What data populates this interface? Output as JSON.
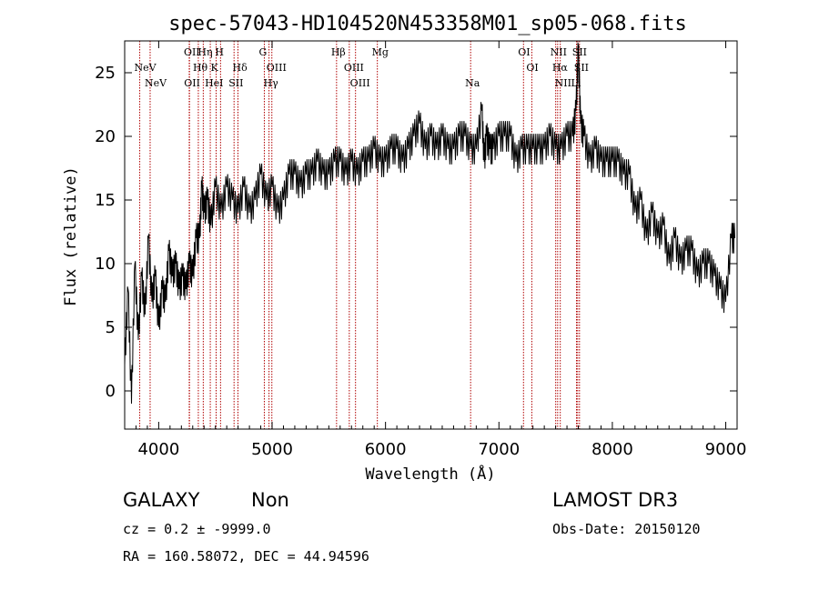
{
  "chart_data": {
    "type": "line",
    "title": "spec-57043-HD104520N453358M01_sp05-068.fits",
    "xlabel": "Wavelength (Å)",
    "ylabel": "Flux (relative)",
    "xlim": [
      3700,
      9100
    ],
    "ylim": [
      -3,
      27.5
    ],
    "x_ticks": [
      4000,
      5000,
      6000,
      7000,
      8000,
      9000
    ],
    "y_ticks": [
      0,
      5,
      10,
      15,
      20,
      25
    ],
    "line_color": "#000000",
    "marker_color": "#b00000",
    "series": [
      {
        "name": "spectrum",
        "x": [
          3700,
          3730,
          3760,
          3790,
          3820,
          3850,
          3880,
          3910,
          3940,
          3970,
          4000,
          4030,
          4060,
          4090,
          4120,
          4150,
          4180,
          4210,
          4240,
          4270,
          4300,
          4330,
          4360,
          4380,
          4400,
          4430,
          4460,
          4500,
          4550,
          4600,
          4650,
          4700,
          4750,
          4800,
          4850,
          4900,
          4950,
          5000,
          5050,
          5100,
          5150,
          5200,
          5250,
          5300,
          5350,
          5400,
          5450,
          5500,
          5550,
          5600,
          5650,
          5700,
          5750,
          5800,
          5850,
          5900,
          5950,
          6000,
          6050,
          6100,
          6150,
          6200,
          6250,
          6300,
          6350,
          6400,
          6450,
          6500,
          6550,
          6600,
          6650,
          6700,
          6750,
          6800,
          6850,
          6870,
          6890,
          6920,
          6950,
          7000,
          7050,
          7100,
          7150,
          7200,
          7250,
          7300,
          7350,
          7400,
          7450,
          7500,
          7550,
          7600,
          7650,
          7680,
          7700,
          7720,
          7750,
          7800,
          7850,
          7900,
          7950,
          8000,
          8050,
          8100,
          8150,
          8200,
          8250,
          8300,
          8350,
          8400,
          8450,
          8500,
          8550,
          8600,
          8650,
          8700,
          8750,
          8800,
          8850,
          8900,
          8950,
          9000,
          9050,
          9080
        ],
        "y": [
          2,
          8,
          -1,
          10,
          4,
          9,
          6,
          12,
          7,
          9,
          5,
          8,
          7,
          11,
          9,
          10,
          8,
          9,
          8,
          10,
          9,
          12,
          12,
          16,
          14,
          15,
          13,
          16,
          14,
          16,
          15,
          14,
          16,
          14,
          15,
          17,
          15,
          16,
          14,
          15,
          17,
          17,
          16,
          17,
          17,
          18,
          17,
          17,
          18,
          18,
          17,
          18,
          17,
          18,
          18,
          19,
          18,
          18,
          19,
          19,
          18,
          19,
          20,
          21,
          19,
          20,
          19,
          20,
          19,
          19,
          20,
          20,
          19,
          19,
          22,
          18,
          20,
          19,
          19,
          20,
          20,
          20,
          18,
          19,
          19,
          19,
          19,
          19,
          20,
          19,
          19,
          20,
          20,
          22,
          27,
          21,
          20,
          18,
          19,
          18,
          18,
          18,
          18,
          17,
          17,
          14,
          15,
          12,
          14,
          12,
          13,
          10,
          12,
          10,
          11,
          11,
          9,
          10,
          10,
          9,
          8,
          7,
          12,
          12
        ]
      }
    ],
    "line_markers": [
      {
        "label": "NeV",
        "wavelength": 3426,
        "row": 2
      },
      {
        "label": "NeV",
        "wavelength": 3346,
        "row": 1
      },
      {
        "label": "OII",
        "wavelength": 3727,
        "row": 0
      },
      {
        "label": "OII",
        "wavelength": 3729,
        "row": 2
      },
      {
        "label": "Hη",
        "wavelength": 3835,
        "row": 0
      },
      {
        "label": "Hθ",
        "wavelength": 3797,
        "row": 1
      },
      {
        "label": "H",
        "wavelength": 3968,
        "row": 0
      },
      {
        "label": "HeI",
        "wavelength": 3889,
        "row": 2
      },
      {
        "label": "K",
        "wavelength": 3934,
        "row": 1
      },
      {
        "label": "Hδ",
        "wavelength": 4102,
        "row": 1
      },
      {
        "label": "SII",
        "wavelength": 4072,
        "row": 2
      },
      {
        "label": "G",
        "wavelength": 4305,
        "row": 0
      },
      {
        "label": "OIII",
        "wavelength": 4363,
        "row": 1
      },
      {
        "label": "Hγ",
        "wavelength": 4341,
        "row": 2
      },
      {
        "label": "Hβ",
        "wavelength": 4861,
        "row": 0
      },
      {
        "label": "OIII",
        "wavelength": 4959,
        "row": 1
      },
      {
        "label": "OIII",
        "wavelength": 5007,
        "row": 2
      },
      {
        "label": "Mg",
        "wavelength": 5175,
        "row": 0
      },
      {
        "label": "Na",
        "wavelength": 5893,
        "row": 2
      },
      {
        "label": "OI",
        "wavelength": 6300,
        "row": 0
      },
      {
        "label": "OI",
        "wavelength": 6364,
        "row": 1
      },
      {
        "label": "NII",
        "wavelength": 6548,
        "row": 0
      },
      {
        "label": "Hα",
        "wavelength": 6563,
        "row": 1
      },
      {
        "label": "NII",
        "wavelength": 6583,
        "row": 2
      },
      {
        "label": "SII",
        "wavelength": 6717,
        "row": 0
      },
      {
        "label": "SII",
        "wavelength": 6731,
        "row": 1
      },
      {
        "label": "Li",
        "wavelength": 6708,
        "row": 2
      }
    ],
    "redshift_factor": 1.1455
  },
  "info": {
    "class": "GALAXY",
    "subclass": "Non",
    "survey": "LAMOST DR3",
    "cz": "cz = 0.2 ± -9999.0",
    "obs_date": "Obs-Date: 20150120",
    "radec": "RA = 160.58072, DEC =  44.94596"
  }
}
